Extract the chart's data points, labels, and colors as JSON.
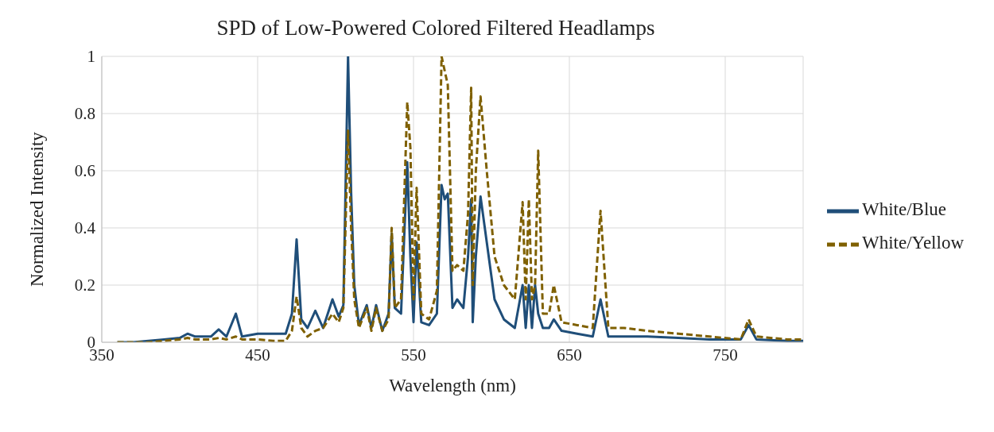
{
  "chart_data": {
    "type": "line",
    "title": "SPD of Low-Powered Colored Filtered Headlamps",
    "xlabel": "Wavelength (nm)",
    "ylabel": "Normalized Intensity",
    "x": [
      360,
      370,
      380,
      390,
      400,
      405,
      410,
      420,
      425,
      430,
      436,
      440,
      450,
      460,
      468,
      472,
      475,
      478,
      482,
      487,
      492,
      498,
      502,
      505,
      508,
      510,
      512,
      515,
      520,
      523,
      526,
      530,
      534,
      536,
      538,
      542,
      546,
      548,
      550,
      552,
      555,
      560,
      565,
      568,
      570,
      572,
      575,
      578,
      582,
      585,
      587,
      588,
      590,
      593,
      597,
      602,
      608,
      615,
      620,
      622,
      624,
      626,
      628,
      630,
      633,
      637,
      640,
      645,
      655,
      665,
      670,
      675,
      685,
      700,
      720,
      740,
      760,
      765,
      770,
      790,
      800
    ],
    "series": [
      {
        "name": "White/Blue",
        "color": "#1f4e79",
        "line_style": "solid",
        "values": [
          0,
          0,
          0.005,
          0.01,
          0.015,
          0.03,
          0.02,
          0.02,
          0.045,
          0.02,
          0.1,
          0.02,
          0.03,
          0.03,
          0.03,
          0.1,
          0.36,
          0.08,
          0.05,
          0.11,
          0.05,
          0.15,
          0.09,
          0.13,
          1.0,
          0.52,
          0.2,
          0.06,
          0.13,
          0.05,
          0.13,
          0.04,
          0.1,
          0.38,
          0.12,
          0.1,
          0.63,
          0.3,
          0.07,
          0.35,
          0.07,
          0.06,
          0.1,
          0.55,
          0.5,
          0.52,
          0.12,
          0.15,
          0.12,
          0.3,
          0.5,
          0.07,
          0.3,
          0.51,
          0.35,
          0.15,
          0.08,
          0.05,
          0.2,
          0.05,
          0.2,
          0.05,
          0.2,
          0.1,
          0.05,
          0.05,
          0.08,
          0.04,
          0.03,
          0.02,
          0.15,
          0.02,
          0.02,
          0.02,
          0.015,
          0.01,
          0.01,
          0.06,
          0.01,
          0.005,
          0.005
        ]
      },
      {
        "name": "White/Yellow",
        "color": "#7f6000",
        "line_style": "dashed",
        "values": [
          0,
          0,
          0,
          0.005,
          0.01,
          0.015,
          0.01,
          0.01,
          0.015,
          0.01,
          0.02,
          0.01,
          0.01,
          0.005,
          0.005,
          0.04,
          0.16,
          0.05,
          0.02,
          0.04,
          0.05,
          0.1,
          0.07,
          0.12,
          0.74,
          0.4,
          0.15,
          0.05,
          0.12,
          0.04,
          0.12,
          0.04,
          0.08,
          0.4,
          0.12,
          0.15,
          0.84,
          0.68,
          0.15,
          0.54,
          0.1,
          0.08,
          0.18,
          1.0,
          0.95,
          0.9,
          0.25,
          0.27,
          0.25,
          0.45,
          0.89,
          0.2,
          0.6,
          0.86,
          0.6,
          0.3,
          0.2,
          0.15,
          0.49,
          0.15,
          0.5,
          0.15,
          0.2,
          0.67,
          0.1,
          0.1,
          0.2,
          0.07,
          0.06,
          0.05,
          0.46,
          0.05,
          0.05,
          0.04,
          0.03,
          0.02,
          0.01,
          0.08,
          0.02,
          0.01,
          0.01
        ]
      }
    ],
    "xlim": [
      350,
      800
    ],
    "xticks": [
      350,
      450,
      550,
      650,
      750
    ],
    "ylim": [
      0,
      1
    ],
    "yticks": [
      0,
      0.2,
      0.4,
      0.6,
      0.8,
      1
    ],
    "grid": true,
    "legend": "right",
    "marker": "none"
  }
}
